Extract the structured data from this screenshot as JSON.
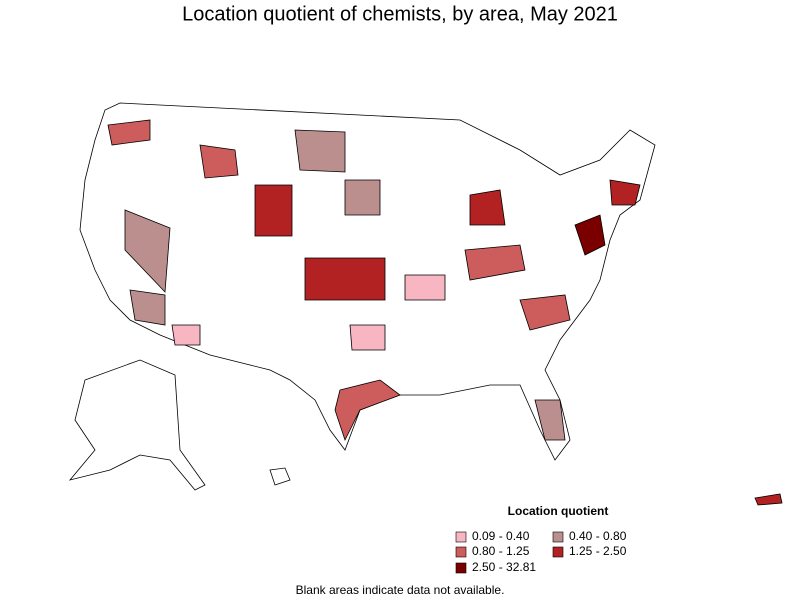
{
  "title": "Location quotient of chemists, by area, May 2021",
  "legend": {
    "title": "Location quotient",
    "items": [
      {
        "label": "0.09 - 0.40",
        "color": "#f7b6c2"
      },
      {
        "label": "0.40 - 0.80",
        "color": "#bc8f8f"
      },
      {
        "label": "0.80 - 1.25",
        "color": "#cd5c5c"
      },
      {
        "label": "1.25 - 2.50",
        "color": "#b22222"
      },
      {
        "label": "2.50 - 32.81",
        "color": "#7a0000"
      }
    ]
  },
  "note": "Blank areas indicate data not available."
}
